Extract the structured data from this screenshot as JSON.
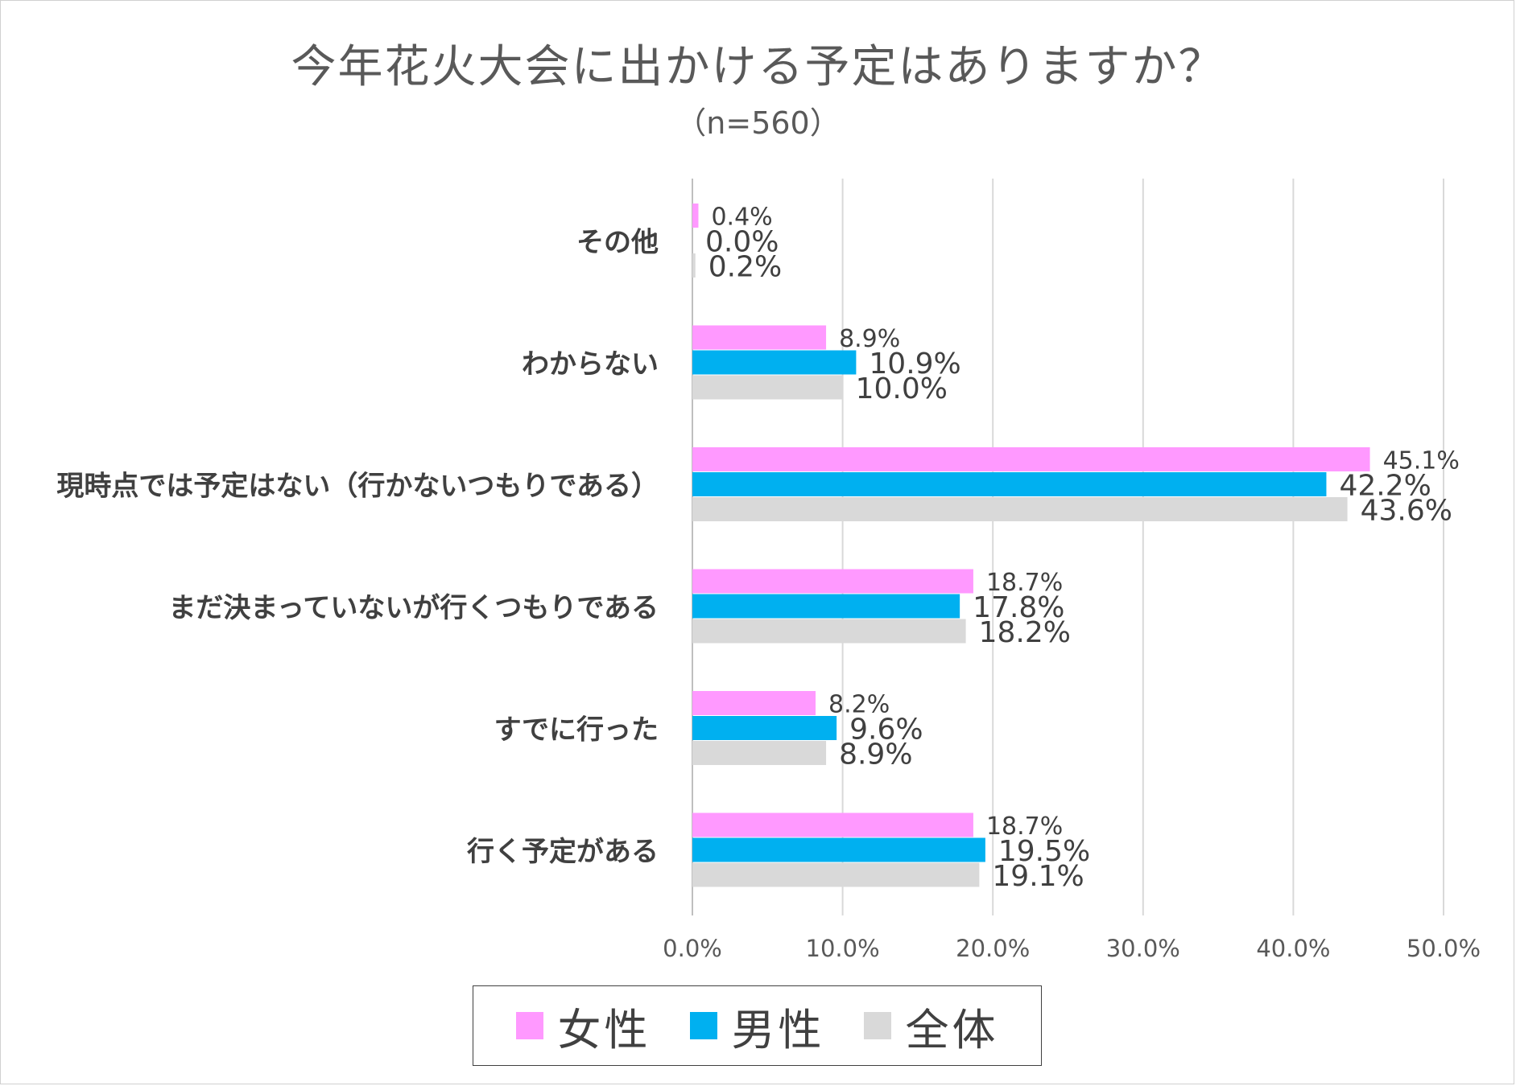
{
  "chart_data": {
    "type": "bar",
    "orientation": "horizontal",
    "title": "今年花火大会に出かける予定はありますか？",
    "subtitle": "（n=560）",
    "categories": [
      "その他",
      "わからない",
      "現時点では予定はない（行かないつもりである）",
      "まだ決まっていないが行くつもりである",
      "すでに行った",
      "行く予定がある"
    ],
    "series": [
      {
        "name": "女性",
        "color": "#ff99ff",
        "values": [
          0.4,
          8.9,
          45.1,
          18.7,
          8.2,
          18.7
        ],
        "labels": [
          "0.4%",
          "8.9%",
          "45.1%",
          "18.7%",
          "8.2%",
          "18.7%"
        ]
      },
      {
        "name": "男性",
        "color": "#00b0f0",
        "values": [
          0.0,
          10.9,
          42.2,
          17.8,
          9.6,
          19.5
        ],
        "labels": [
          "0.0%",
          "10.9%",
          "42.2%",
          "17.8%",
          "9.6%",
          "19.5%"
        ]
      },
      {
        "name": "全体",
        "color": "#d9d9d9",
        "values": [
          0.2,
          10.0,
          43.6,
          18.2,
          8.9,
          19.1
        ],
        "labels": [
          "0.2%",
          "10.0%",
          "43.6%",
          "18.2%",
          "8.9%",
          "19.1%"
        ]
      }
    ],
    "xlim": [
      0,
      50
    ],
    "xticks": [
      0,
      10,
      20,
      30,
      40,
      50
    ],
    "xtick_labels": [
      "0.0%",
      "10.0%",
      "20.0%",
      "30.0%",
      "40.0%",
      "50.0%"
    ],
    "grid": true,
    "legend_position": "bottom"
  }
}
